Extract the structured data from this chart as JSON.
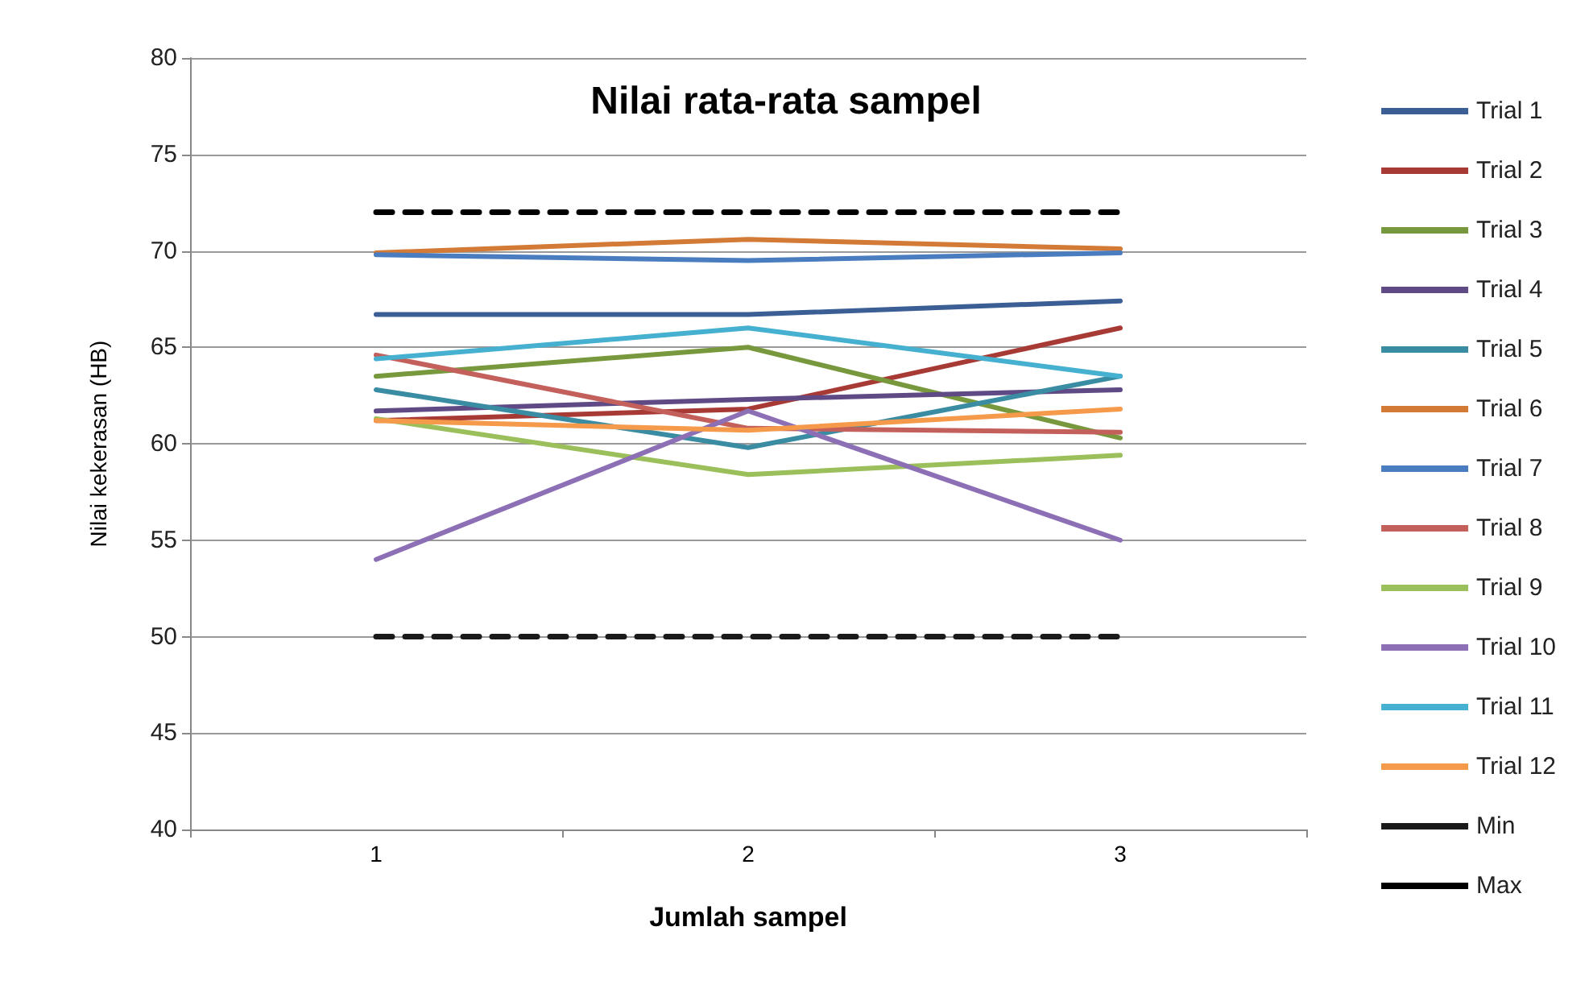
{
  "chart_data": {
    "type": "line",
    "title": "Nilai rata-rata sampel",
    "xlabel": "Jumlah sampel",
    "ylabel": "Nilai kekerasan (HB)",
    "categories": [
      "1",
      "2",
      "3"
    ],
    "ylim": [
      40,
      80
    ],
    "yticks": [
      40,
      45,
      50,
      55,
      60,
      65,
      70,
      75,
      80
    ],
    "grid": "y",
    "legend": "right",
    "marker": "none",
    "series": [
      {
        "name": "Trial 1",
        "color": "#3b5f94",
        "values": [
          66.7,
          66.7,
          67.4
        ]
      },
      {
        "name": "Trial 2",
        "color": "#a83a36",
        "values": [
          61.2,
          61.8,
          66.0
        ]
      },
      {
        "name": "Trial 3",
        "color": "#77983c",
        "values": [
          63.5,
          65.0,
          60.3
        ]
      },
      {
        "name": "Trial 4",
        "color": "#5f4a85",
        "values": [
          61.7,
          62.3,
          62.8
        ]
      },
      {
        "name": "Trial 5",
        "color": "#3a8ca3",
        "values": [
          62.8,
          59.8,
          63.5
        ]
      },
      {
        "name": "Trial 6",
        "color": "#d27a36",
        "values": [
          69.9,
          70.6,
          70.1
        ]
      },
      {
        "name": "Trial 7",
        "color": "#4a7cc0",
        "values": [
          69.8,
          69.5,
          69.9
        ]
      },
      {
        "name": "Trial 8",
        "color": "#c4605c",
        "values": [
          64.6,
          60.8,
          60.6
        ]
      },
      {
        "name": "Trial 9",
        "color": "#9bbf5a",
        "values": [
          61.3,
          58.4,
          59.4
        ]
      },
      {
        "name": "Trial 10",
        "color": "#8c6fb5",
        "values": [
          54.0,
          61.7,
          55.0
        ]
      },
      {
        "name": "Trial 11",
        "color": "#45b0cf",
        "values": [
          64.4,
          66.0,
          63.5
        ]
      },
      {
        "name": "Trial 12",
        "color": "#f59a4a",
        "values": [
          61.2,
          60.7,
          61.8
        ]
      },
      {
        "name": "Min",
        "color": "#1a1a1a",
        "line_style": "dashed",
        "values": [
          50,
          50,
          50
        ]
      },
      {
        "name": "Max",
        "color": "#000000",
        "line_style": "dashed",
        "values": [
          72,
          72,
          72
        ]
      }
    ]
  }
}
